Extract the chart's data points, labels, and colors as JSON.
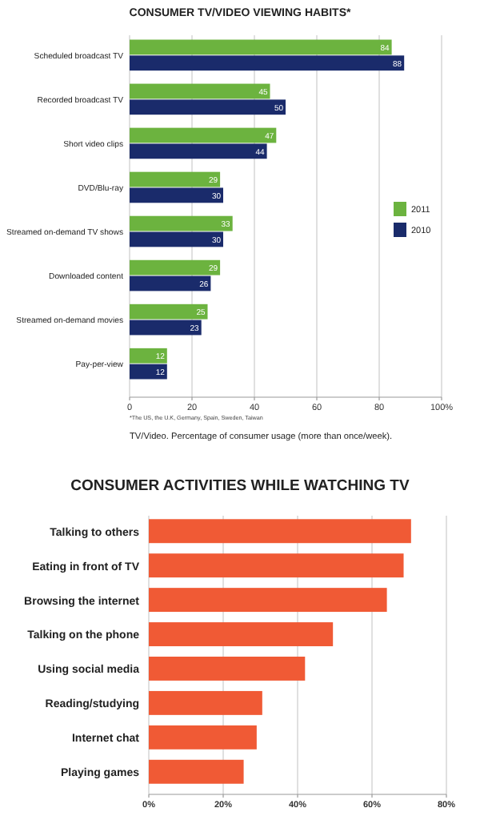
{
  "chart_data": [
    {
      "type": "bar",
      "orientation": "horizontal",
      "title": "CONSUMER TV/VIDEO VIEWING HABITS*",
      "categories": [
        "Scheduled broadcast TV",
        "Recorded broadcast TV",
        "Short video clips",
        "DVD/Blu-ray",
        "Streamed on-demand TV shows",
        "Downloaded content",
        "Streamed on-demand movies",
        "Pay-per-view"
      ],
      "series": [
        {
          "name": "2011",
          "color": "#6cb33f",
          "values": [
            84,
            45,
            47,
            29,
            33,
            29,
            25,
            12
          ]
        },
        {
          "name": "2010",
          "color": "#1a2b6b",
          "values": [
            88,
            50,
            44,
            30,
            30,
            26,
            23,
            12
          ]
        }
      ],
      "xlim": [
        0,
        100
      ],
      "xticks": [
        0,
        20,
        40,
        60,
        80,
        {
          "value": 100,
          "label": "100%"
        }
      ],
      "grid": "x",
      "legend": "right",
      "data_labels": true,
      "annotations": [
        "*The US, the U.K, Germany, Spain, Sweden, Taiwan",
        "TV/Video. Percentage of consumer usage (more than once/week)."
      ]
    },
    {
      "type": "bar",
      "orientation": "horizontal",
      "title": "CONSUMER ACTIVITIES WHILE WATCHING TV",
      "categories": [
        "Talking to others",
        "Eating in front of TV",
        "Browsing the internet",
        "Talking on the phone",
        "Using social media",
        "Reading/studying",
        "Internet chat",
        "Playing games"
      ],
      "values": [
        70.5,
        68.5,
        64,
        49.5,
        42,
        30.5,
        29,
        25.5
      ],
      "color": "#f05a35",
      "xlim": [
        0,
        80
      ],
      "xticks": [
        {
          "value": 0,
          "label": "0%"
        },
        {
          "value": 20,
          "label": "20%"
        },
        {
          "value": 40,
          "label": "40%"
        },
        {
          "value": 60,
          "label": "60%"
        },
        {
          "value": 80,
          "label": "80%"
        }
      ],
      "grid": "x"
    }
  ]
}
